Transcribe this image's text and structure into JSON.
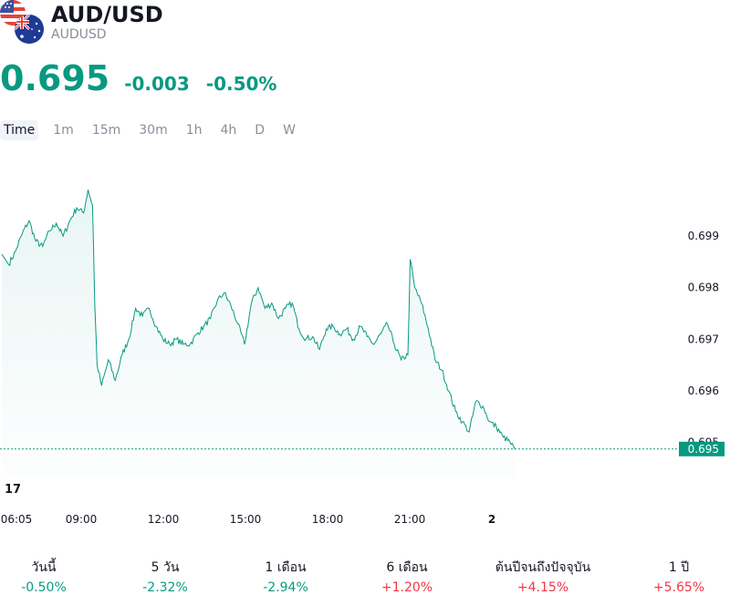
{
  "header": {
    "title": "AUD/USD",
    "symbol": "AUDUSD",
    "icons": [
      "us-flag-icon",
      "au-flag-icon"
    ]
  },
  "quote": {
    "price": "0.695",
    "change": "-0.003",
    "change_percent": "-0.50%",
    "color": "#089981"
  },
  "timeframes": [
    "Time",
    "1m",
    "15m",
    "30m",
    "1h",
    "4h",
    "D",
    "W"
  ],
  "active_timeframe": "Time",
  "chart_data": {
    "type": "area",
    "line_color": "#089981",
    "y_ticks": [
      "0.699",
      "0.698",
      "0.697",
      "0.696",
      "0.695"
    ],
    "x_ticks": [
      "06:05",
      "09:00",
      "12:00",
      "15:00",
      "18:00",
      "21:00",
      "2"
    ],
    "ylim": [
      0.6943,
      0.7004
    ],
    "last_value_label": "0.695",
    "last_value": 0.69487,
    "points": [
      [
        "06:05",
        0.69865
      ],
      [
        "06:20",
        0.69845
      ],
      [
        "06:35",
        0.6987
      ],
      [
        "06:50",
        0.69905
      ],
      [
        "07:05",
        0.6993
      ],
      [
        "07:20",
        0.6989
      ],
      [
        "07:35",
        0.6988
      ],
      [
        "07:50",
        0.6991
      ],
      [
        "08:05",
        0.69925
      ],
      [
        "08:20",
        0.699
      ],
      [
        "08:35",
        0.6993
      ],
      [
        "08:50",
        0.69955
      ],
      [
        "09:05",
        0.69945
      ],
      [
        "09:15",
        0.6999
      ],
      [
        "09:25",
        0.6996
      ],
      [
        "09:30",
        0.69765
      ],
      [
        "09:35",
        0.6965
      ],
      [
        "09:45",
        0.6961
      ],
      [
        "10:00",
        0.6966
      ],
      [
        "10:15",
        0.6962
      ],
      [
        "10:30",
        0.6967
      ],
      [
        "10:45",
        0.697
      ],
      [
        "11:00",
        0.6976
      ],
      [
        "11:15",
        0.69745
      ],
      [
        "11:30",
        0.6976
      ],
      [
        "11:45",
        0.69725
      ],
      [
        "12:00",
        0.697
      ],
      [
        "12:15",
        0.6969
      ],
      [
        "12:30",
        0.697
      ],
      [
        "12:45",
        0.6969
      ],
      [
        "13:00",
        0.6969
      ],
      [
        "13:15",
        0.6971
      ],
      [
        "13:30",
        0.69725
      ],
      [
        "13:45",
        0.6974
      ],
      [
        "14:00",
        0.69775
      ],
      [
        "14:15",
        0.6979
      ],
      [
        "14:30",
        0.69765
      ],
      [
        "14:45",
        0.6973
      ],
      [
        "15:00",
        0.6969
      ],
      [
        "15:15",
        0.6977
      ],
      [
        "15:30",
        0.698
      ],
      [
        "15:45",
        0.6976
      ],
      [
        "16:00",
        0.6977
      ],
      [
        "16:15",
        0.6974
      ],
      [
        "16:30",
        0.6976
      ],
      [
        "16:45",
        0.6977
      ],
      [
        "17:00",
        0.6972
      ],
      [
        "17:15",
        0.697
      ],
      [
        "17:30",
        0.69705
      ],
      [
        "17:45",
        0.6968
      ],
      [
        "18:00",
        0.6972
      ],
      [
        "18:15",
        0.69725
      ],
      [
        "18:30",
        0.6971
      ],
      [
        "18:45",
        0.6972
      ],
      [
        "19:00",
        0.697
      ],
      [
        "19:15",
        0.69725
      ],
      [
        "19:30",
        0.69705
      ],
      [
        "19:45",
        0.6969
      ],
      [
        "20:00",
        0.6971
      ],
      [
        "20:15",
        0.6973
      ],
      [
        "20:30",
        0.6969
      ],
      [
        "20:45",
        0.6966
      ],
      [
        "21:00",
        0.6967
      ],
      [
        "21:05",
        0.69855
      ],
      [
        "21:15",
        0.698
      ],
      [
        "21:30",
        0.6977
      ],
      [
        "21:45",
        0.6972
      ],
      [
        "22:00",
        0.6966
      ],
      [
        "22:15",
        0.6964
      ],
      [
        "22:30",
        0.696
      ],
      [
        "22:45",
        0.6956
      ],
      [
        "23:00",
        0.6954
      ],
      [
        "23:15",
        0.6952
      ],
      [
        "23:30",
        0.6958
      ],
      [
        "23:45",
        0.6957
      ],
      [
        "00:00",
        0.6954
      ],
      [
        "00:15",
        0.6953
      ],
      [
        "00:30",
        0.6951
      ],
      [
        "00:45",
        0.695
      ],
      [
        "00:55",
        0.69487
      ]
    ]
  },
  "performance": [
    {
      "label": "วันนี้",
      "value": "-0.50%",
      "trend": "neg"
    },
    {
      "label": "5 วัน",
      "value": "-2.32%",
      "trend": "neg"
    },
    {
      "label": "1 เดือน",
      "value": "-2.94%",
      "trend": "neg"
    },
    {
      "label": "6 เดือน",
      "value": "+1.20%",
      "trend": "pos"
    },
    {
      "label": "ต้นปีจนถึงปัจจุบัน",
      "value": "+4.15%",
      "trend": "pos"
    },
    {
      "label": "1 ปี",
      "value": "+5.65%",
      "trend": "pos"
    }
  ]
}
